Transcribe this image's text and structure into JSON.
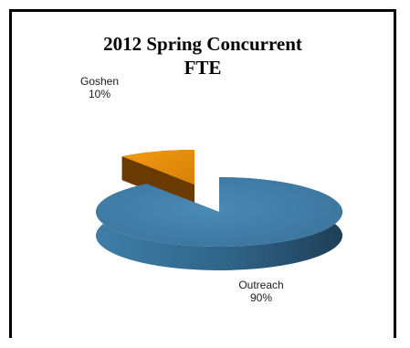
{
  "chart_data": {
    "type": "pie",
    "title_lines": [
      "2012 Spring  Concurrent",
      "FTE"
    ],
    "slices": [
      {
        "name": "Outreach",
        "value": 90,
        "label": "90%",
        "color": "#3e7ba4"
      },
      {
        "name": "Goshen",
        "value": 10,
        "label": "10%",
        "color": "#e8900c"
      }
    ],
    "legend": "none"
  }
}
